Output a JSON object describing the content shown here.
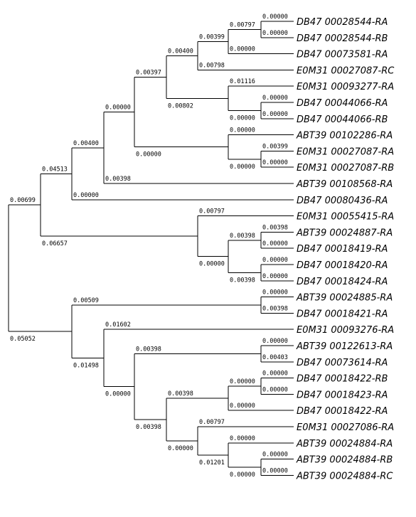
{
  "leaves": [
    "DB47 00028544-RA",
    "DB47 00028544-RB",
    "DB47 00073581-RA",
    "E0M31 00027087-RC",
    "E0M31 00093277-RA",
    "DB47 00044066-RA",
    "DB47 00044066-RB",
    "ABT39 00102286-RA",
    "E0M31 00027087-RA",
    "E0M31 00027087-RB",
    "ABT39 00108568-RA",
    "DB47 00080436-RA",
    "E0M31 00055415-RA",
    "ABT39 00024887-RA",
    "DB47 00018419-RA",
    "DB47 00018420-RA",
    "DB47 00018424-RA",
    "ABT39 00024885-RA",
    "DB47 00018421-RA",
    "E0M31 00093276-RA",
    "ABT39 00122613-RA",
    "DB47 00073614-RA",
    "DB47 00018422-RB",
    "DB47 00018423-RA",
    "DB47 00018422-RA",
    "E0M31 00027086-RA",
    "ABT39 00024884-RA",
    "ABT39 00024884-RB",
    "ABT39 00024884-RC"
  ],
  "branch_lengths": {
    "leaf_edges": [
      "0.00000",
      "0.00000",
      "0.00000",
      "0.00798",
      "0.01116",
      "0.00000",
      "0.00000",
      "0.00000",
      "0.00399",
      "0.00000",
      "0.00398",
      "0.00000",
      "0.00797",
      "0.00398",
      "0.00000",
      "0.00000",
      "0.00000",
      "0.00000",
      "0.00398",
      "0.01602",
      "0.00000",
      "0.00403",
      "0.00000",
      "0.00000",
      "0.00000",
      "0.00797",
      "0.00000",
      "0.00000",
      "0.00000"
    ],
    "internal_edges": {
      "n1": "0.00797",
      "n2": "0.00399",
      "n3": "0.00400",
      "n4": "0.00802",
      "n5": "0.00397",
      "n6": "0.00000",
      "n7": "0.00000",
      "n8": "0.00400",
      "n9": "0.04513",
      "n10": "0.00398",
      "n11": "0.00398",
      "n12": "0.00000",
      "n13": "0.06657",
      "n14": "0.00699",
      "n15": "0.00509",
      "n16": "0.00398",
      "n17": "0.00000",
      "n18": "0.00398",
      "n19": "0.01201",
      "n20": "0.00000",
      "n21": "0.00398",
      "n22": "0.00000",
      "n23": "0.01498",
      "n24": "0.05052"
    }
  }
}
